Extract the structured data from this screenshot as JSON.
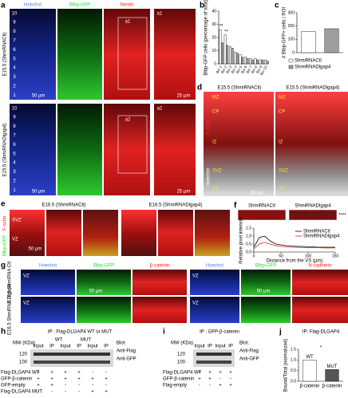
{
  "panels": {
    "a": {
      "letter": "a",
      "channels": [
        "Hoechst",
        "Blbp-GFP",
        "Nestin"
      ],
      "rows": [
        "E15.5 (ShmiRNACtl)",
        "E15.5 (ShmiRNADlgap4)"
      ],
      "bins": [
        "10",
        "9",
        "8",
        "7",
        "6",
        "5",
        "4",
        "3",
        "2",
        "1"
      ],
      "insets": [
        "a1",
        "a2"
      ],
      "scale": "50 µm",
      "inset_scale": "25 µm"
    },
    "d": {
      "letter": "d",
      "titles": [
        "E15.5 (ShmiRNACtl)",
        "E15.5 (ShmiRNADlgap4)"
      ],
      "stains": [
        "F-actin",
        "Hoechst"
      ],
      "layers": [
        "MZ",
        "CP",
        "IZ",
        "SVZ",
        "VZ"
      ],
      "scale": "50 µm"
    },
    "e": {
      "letter": "e",
      "titles": [
        "E16.5 (ShmiRNACtl)",
        "E16.5 (ShmiRNADlgap4)"
      ],
      "stains": [
        "F-actin",
        "Blbp-GFP"
      ],
      "zones": [
        "SVZ",
        "VZ"
      ],
      "scale": "50 µm"
    },
    "g": {
      "letter": "g",
      "channels": [
        "Hoechst",
        "Blbp-GFP",
        "β-catenin",
        "Hoechst",
        "Blbp-GFP",
        "N-cadherin"
      ],
      "rows": [
        "E16.5 ShmiRNA Ctl",
        "E16.5 ShmiRNA Dlgap4"
      ],
      "zone": "VZ",
      "scale": "50 µm"
    },
    "h": {
      "letter": "h",
      "title": "IP : Flag-DLGAP4 WT or MUT",
      "mw_label": "MW (KDa)",
      "mw": [
        "120",
        "100"
      ],
      "lanes": [
        "Input",
        "IP",
        "Input",
        "IP",
        "Input",
        "IP"
      ],
      "groups": [
        "WT",
        "MUT"
      ],
      "blot_label": "Blot:",
      "blots": [
        "Anti-Flag",
        "Anti-GFP"
      ],
      "conditions": [
        {
          "label": "Flag-DLGAP4 WT",
          "marks": [
            "+",
            "+",
            "+",
            "+",
            "-",
            "-"
          ]
        },
        {
          "label": "GFP-β-catenin",
          "marks": [
            "+",
            "+",
            "+",
            "+",
            "+",
            "+"
          ]
        },
        {
          "label": "GFP-empty",
          "marks": [
            "+",
            "+",
            "-",
            "-",
            "-",
            "-"
          ]
        },
        {
          "label": "Flag-DLGAP4 MUT",
          "marks": [
            "-",
            "-",
            "-",
            "-",
            "+",
            "+"
          ]
        }
      ]
    },
    "i": {
      "letter": "i",
      "title": "IP : GFP-β-catenin",
      "mw_label": "MW (KDa)",
      "mw": [
        "120",
        "100"
      ],
      "lanes": [
        "Input",
        "IP",
        "Input",
        "IP"
      ],
      "blot_label": "Blot:",
      "blots": [
        "Anti-Flag",
        "Anti-GFP"
      ],
      "conditions": [
        {
          "label": "Flag-DLGAP4 WT",
          "marks": [
            "+",
            "+",
            "+",
            "+"
          ]
        },
        {
          "label": "GFP-β-catenin",
          "marks": [
            "+",
            "+",
            "-",
            "-"
          ]
        },
        {
          "label": "Flag-empty",
          "marks": [
            "-",
            "-",
            "+",
            "+"
          ]
        }
      ]
    }
  },
  "chart_data": [
    {
      "type": "bar",
      "letter": "b",
      "y_label": "Blbp-GFP cells (percentage of total)",
      "categories": [
        "Bin 1",
        "Bin 2",
        "Bin 3",
        "Bin 4",
        "Bin 5",
        "Bin 6",
        "Bin 7",
        "Bin 8",
        "Bin 9",
        "Bin 10"
      ],
      "series": [
        {
          "color": "#ffffff",
          "values": [
            26,
            22,
            13,
            9,
            7,
            5,
            4,
            4,
            3,
            3
          ]
        },
        {
          "color": "#9e9e9e",
          "values": [
            16,
            14,
            12,
            8,
            5,
            4,
            3,
            3,
            3,
            2
          ]
        }
      ],
      "ylim": [
        0,
        40
      ],
      "yticks": [
        0,
        10,
        20,
        30,
        40
      ],
      "annotations": [
        "**",
        "**"
      ]
    },
    {
      "type": "bar",
      "letter": "c",
      "y_label": "# Blbp-GFP+ cells / ROI",
      "series": [
        {
          "name": "ShmiRNACtl",
          "color": "#ffffff",
          "values": [
            160
          ]
        },
        {
          "name": "ShmiRNADlgap4",
          "color": "#9e9e9e",
          "values": [
            180
          ]
        }
      ],
      "ylim": [
        0,
        300
      ],
      "yticks": [
        0,
        100,
        200,
        300
      ]
    },
    {
      "type": "line",
      "letter": "f",
      "strip_labels": [
        "ShmiRNACtl",
        "ShmiRNADlgap4"
      ],
      "y_label": "Relative pixel intensity",
      "x_label": "Distance from the VS (µm)",
      "x": [
        0,
        10,
        20,
        30,
        40,
        50,
        60,
        70,
        80,
        90,
        100,
        110,
        120,
        130,
        140,
        150
      ],
      "series": [
        {
          "name": "ShmiRNACtl",
          "color": "#000000",
          "values": [
            0.3,
            0.9,
            1.0,
            0.7,
            0.5,
            0.45,
            0.4,
            0.38,
            0.35,
            0.35,
            0.33,
            0.32,
            0.3,
            0.3,
            0.3,
            0.3
          ]
        },
        {
          "name": "ShmiRNADlgap4",
          "color": "#e02020",
          "values": [
            0.2,
            0.5,
            0.6,
            0.5,
            0.4,
            0.35,
            0.33,
            0.3,
            0.3,
            0.28,
            0.28,
            0.27,
            0.27,
            0.26,
            0.26,
            0.26
          ]
        }
      ],
      "xlim": [
        0,
        150
      ],
      "xticks": [
        0,
        50,
        100,
        150
      ],
      "ylim": [
        0,
        1.5
      ],
      "yticks": [
        {
          "value": 0,
          "label": "0.0"
        },
        {
          "value": 0.5,
          "label": "0.5"
        },
        {
          "value": 1,
          "label": "1.0"
        },
        {
          "value": 1.5,
          "label": "1.5"
        }
      ],
      "annotations": [
        "****"
      ]
    },
    {
      "type": "bar",
      "letter": "j",
      "title": "IP: Flag-DLGAP4",
      "y_label": "Bound/Total (normalized)",
      "categories": [
        "β-catenin",
        "β-catenin"
      ],
      "values": [
        1,
        0.55
      ],
      "colors": [
        "#ffffff",
        "#555555"
      ],
      "bar_labels": [
        "WT",
        "MUT"
      ],
      "ylim": [
        0,
        1.5
      ],
      "yticks": [
        {
          "value": 0,
          "label": "0.0"
        },
        {
          "value": 0.5,
          "label": "0.5"
        },
        {
          "value": 1,
          "label": "1.0"
        },
        {
          "value": 1.5,
          "label": "1.5"
        }
      ],
      "annotations": [
        "*"
      ]
    }
  ]
}
